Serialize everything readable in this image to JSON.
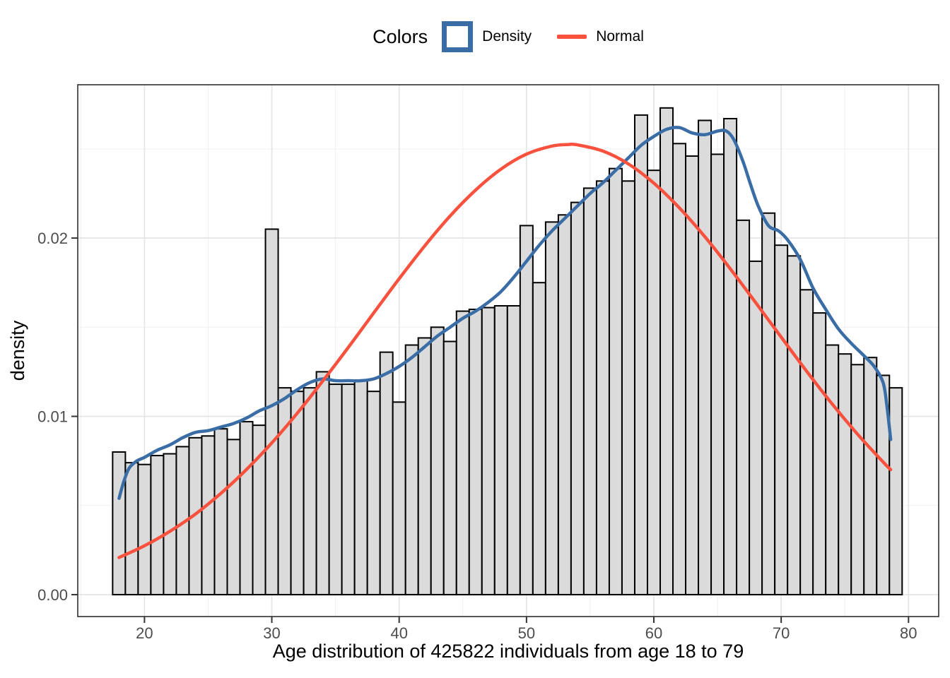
{
  "legend": {
    "title": "Colors",
    "items": [
      {
        "label": "Density",
        "swatch": "box"
      },
      {
        "label": "Normal",
        "swatch": "line"
      }
    ]
  },
  "x_axis": {
    "title": "Age distribution of 425822 individuals from age 18 to 79",
    "ticks": [
      20,
      30,
      40,
      50,
      60,
      70,
      80
    ]
  },
  "y_axis": {
    "title": "density",
    "ticks": [
      {
        "label": "0.00",
        "value": 0
      },
      {
        "label": "0.01",
        "value": 0.01
      },
      {
        "label": "0.02",
        "value": 0.02
      }
    ]
  },
  "colors": {
    "density_line": "#3A6CA6",
    "normal_line": "#F8513E",
    "bar_fill": "#DBDBDB",
    "bar_stroke": "#000000",
    "grid_major": "#E3E3E3",
    "grid_minor": "#F0F0F0",
    "panel_border": "#2E2E2E",
    "tick_mark": "#333333",
    "tick_label": "#4D4D4D"
  },
  "chart_data": {
    "type": "bar",
    "subtype": "histogram-with-density-and-normal-curves",
    "title": "",
    "xlabel": "Age distribution of 425822 individuals from age 18 to 79",
    "ylabel": "density",
    "xlim": [
      14.76,
      82.37
    ],
    "ylim": [
      -0.00123,
      0.0286
    ],
    "bin_width": 1,
    "grid": true,
    "legend_position": "top",
    "x_minor_gridlines": [
      15,
      25,
      35,
      45,
      55,
      65,
      75
    ],
    "y_minor_gridlines": [
      0.005,
      0.015,
      0.025
    ],
    "histogram": {
      "ages": [
        18,
        19,
        20,
        21,
        22,
        23,
        24,
        25,
        26,
        27,
        28,
        29,
        30,
        31,
        32,
        33,
        34,
        35,
        36,
        37,
        38,
        39,
        40,
        41,
        42,
        43,
        44,
        45,
        46,
        47,
        48,
        49,
        50,
        51,
        52,
        53,
        54,
        55,
        56,
        57,
        58,
        59,
        60,
        61,
        62,
        63,
        64,
        65,
        66,
        67,
        68,
        69,
        70,
        71,
        72,
        73,
        74,
        75,
        76,
        77,
        78,
        79
      ],
      "densities": [
        0.008,
        0.0074,
        0.0073,
        0.0078,
        0.0079,
        0.0083,
        0.0088,
        0.0089,
        0.0093,
        0.0087,
        0.0097,
        0.0095,
        0.0205,
        0.0116,
        0.0114,
        0.0116,
        0.0125,
        0.0118,
        0.0118,
        0.012,
        0.0114,
        0.0136,
        0.0108,
        0.014,
        0.0144,
        0.015,
        0.0142,
        0.0159,
        0.016,
        0.0161,
        0.0162,
        0.0162,
        0.0207,
        0.0175,
        0.0209,
        0.0213,
        0.022,
        0.0228,
        0.0232,
        0.0239,
        0.0232,
        0.0269,
        0.0238,
        0.0273,
        0.0253,
        0.0246,
        0.0266,
        0.0247,
        0.0267,
        0.021,
        0.0187,
        0.0214,
        0.0196,
        0.019,
        0.0171,
        0.0158,
        0.014,
        0.0135,
        0.0129,
        0.0133,
        0.0123,
        0.0116
      ]
    },
    "series": [
      {
        "name": "Density",
        "color": "#3A6CA6",
        "points": [
          [
            18,
            0.0054
          ],
          [
            18.4,
            0.0064
          ],
          [
            18.8,
            0.0071
          ],
          [
            19.4,
            0.0075
          ],
          [
            20,
            0.0077
          ],
          [
            21,
            0.0081
          ],
          [
            22,
            0.0084
          ],
          [
            23,
            0.0088
          ],
          [
            24,
            0.0091
          ],
          [
            25,
            0.0092
          ],
          [
            26,
            0.0094
          ],
          [
            27,
            0.0096
          ],
          [
            28,
            0.0099
          ],
          [
            29,
            0.0103
          ],
          [
            30,
            0.0106
          ],
          [
            31,
            0.011
          ],
          [
            32,
            0.0115
          ],
          [
            33,
            0.0119
          ],
          [
            34,
            0.0121
          ],
          [
            35,
            0.012
          ],
          [
            36,
            0.012
          ],
          [
            37,
            0.012
          ],
          [
            38,
            0.0121
          ],
          [
            39,
            0.0124
          ],
          [
            40,
            0.0128
          ],
          [
            41,
            0.0133
          ],
          [
            42,
            0.0139
          ],
          [
            43,
            0.0145
          ],
          [
            44,
            0.015
          ],
          [
            45,
            0.0155
          ],
          [
            46,
            0.0159
          ],
          [
            47,
            0.0164
          ],
          [
            48,
            0.017
          ],
          [
            49,
            0.0178
          ],
          [
            50,
            0.0187
          ],
          [
            51,
            0.0196
          ],
          [
            52,
            0.0204
          ],
          [
            53,
            0.0211
          ],
          [
            54,
            0.0218
          ],
          [
            55,
            0.0225
          ],
          [
            56,
            0.0231
          ],
          [
            57,
            0.0238
          ],
          [
            58,
            0.0245
          ],
          [
            59,
            0.0252
          ],
          [
            60,
            0.0257
          ],
          [
            61,
            0.0261
          ],
          [
            62,
            0.0262
          ],
          [
            63,
            0.0259
          ],
          [
            64,
            0.0258
          ],
          [
            65,
            0.026
          ],
          [
            65.7,
            0.026
          ],
          [
            66.3,
            0.0255
          ],
          [
            67,
            0.0243
          ],
          [
            67.6,
            0.023
          ],
          [
            68.2,
            0.0218
          ],
          [
            69,
            0.0207
          ],
          [
            69.8,
            0.0204
          ],
          [
            70.5,
            0.0199
          ],
          [
            71.5,
            0.0188
          ],
          [
            72.5,
            0.0172
          ],
          [
            73.5,
            0.016
          ],
          [
            74.5,
            0.0149
          ],
          [
            75.5,
            0.0141
          ],
          [
            76.5,
            0.0134
          ],
          [
            77.3,
            0.0128
          ],
          [
            78,
            0.0119
          ],
          [
            78.3,
            0.0106
          ],
          [
            78.6,
            0.0087
          ]
        ]
      },
      {
        "name": "Normal",
        "color": "#F8513E",
        "points": [
          [
            18,
            0.00208
          ],
          [
            20,
            0.00274
          ],
          [
            22,
            0.00355
          ],
          [
            24,
            0.00452
          ],
          [
            26,
            0.00568
          ],
          [
            28,
            0.00701
          ],
          [
            30,
            0.00851
          ],
          [
            32,
            0.01018
          ],
          [
            34,
            0.01198
          ],
          [
            36,
            0.01386
          ],
          [
            38,
            0.0158
          ],
          [
            40,
            0.01772
          ],
          [
            42,
            0.01955
          ],
          [
            44,
            0.02124
          ],
          [
            46,
            0.02269
          ],
          [
            48,
            0.02387
          ],
          [
            50,
            0.02471
          ],
          [
            52,
            0.02516
          ],
          [
            53.3,
            0.02525
          ],
          [
            54,
            0.02523
          ],
          [
            56,
            0.02488
          ],
          [
            58,
            0.02416
          ],
          [
            60,
            0.02308
          ],
          [
            62,
            0.0217
          ],
          [
            64,
            0.02008
          ],
          [
            66,
            0.01828
          ],
          [
            68,
            0.01638
          ],
          [
            70,
            0.01444
          ],
          [
            72,
            0.01253
          ],
          [
            74,
            0.0107
          ],
          [
            76,
            0.009
          ],
          [
            78,
            0.00744
          ],
          [
            78.6,
            0.00701
          ]
        ]
      }
    ]
  }
}
